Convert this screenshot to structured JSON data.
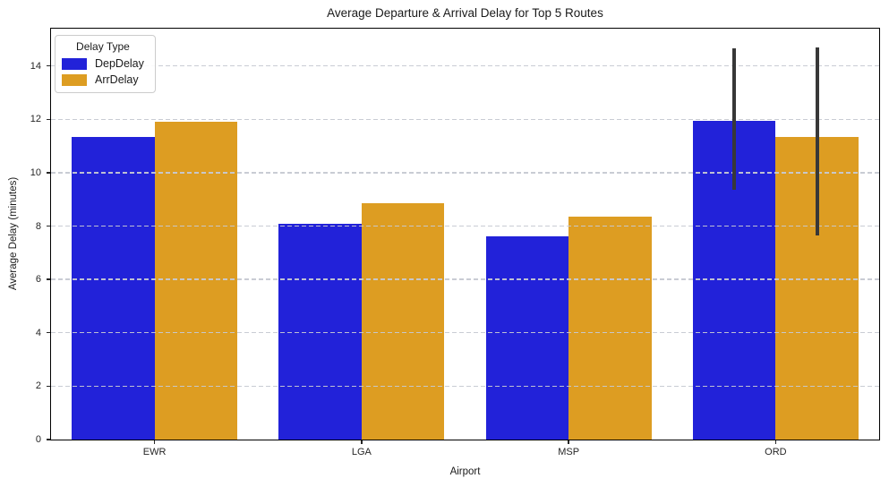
{
  "chart_data": {
    "type": "bar",
    "title": "Average Departure & Arrival Delay for Top 5 Routes",
    "xlabel": "Airport",
    "ylabel": "Average Delay (minutes)",
    "categories": [
      "EWR",
      "LGA",
      "MSP",
      "ORD"
    ],
    "series": [
      {
        "name": "DepDelay",
        "color": "#2222d9",
        "values": [
          11.35,
          8.1,
          7.6,
          11.95
        ],
        "error_bars": [
          null,
          null,
          null,
          {
            "low": 9.35,
            "high": 14.65
          }
        ]
      },
      {
        "name": "ArrDelay",
        "color": "#dd9d22",
        "values": [
          11.9,
          8.85,
          8.35,
          11.35
        ],
        "error_bars": [
          null,
          null,
          null,
          {
            "low": 7.65,
            "high": 14.7
          }
        ]
      }
    ],
    "ylim": [
      0,
      15.4
    ],
    "yticks": [
      0,
      2,
      4,
      6,
      8,
      10,
      12,
      14
    ],
    "grid": {
      "axis": "y",
      "style": "dashed",
      "color": "#c6c9d2",
      "above_bars": true
    },
    "legend": {
      "title": "Delay Type",
      "position": "upper-left"
    },
    "error_bar_color": "#383838"
  }
}
